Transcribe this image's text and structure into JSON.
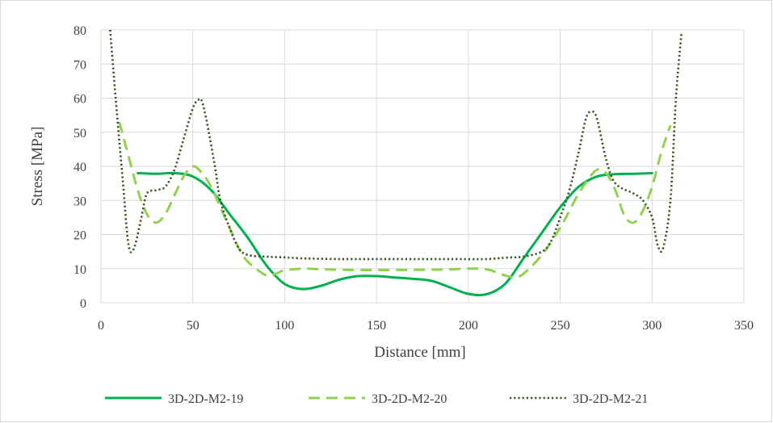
{
  "chart_data": {
    "type": "line",
    "title": "",
    "xlabel": "Distance [mm]",
    "ylabel": "Stress [MPa]",
    "xlim": [
      0,
      350
    ],
    "ylim": [
      0,
      80
    ],
    "x_ticks": [
      0,
      50,
      100,
      150,
      200,
      250,
      300,
      350
    ],
    "y_ticks": [
      0,
      10,
      20,
      30,
      40,
      50,
      60,
      70,
      80
    ],
    "grid": true,
    "legend_position": "bottom",
    "series": [
      {
        "name": "3D-2D-M2-19",
        "color": "#00B050",
        "style": "solid",
        "x": [
          20,
          30,
          40,
          50,
          60,
          70,
          80,
          90,
          100,
          110,
          120,
          130,
          140,
          150,
          160,
          170,
          180,
          190,
          200,
          210,
          220,
          230,
          240,
          250,
          260,
          270,
          280,
          290,
          300
        ],
        "y": [
          38,
          37.8,
          38,
          37,
          33,
          26,
          19,
          11,
          5.5,
          4,
          5,
          6.8,
          7.8,
          7.8,
          7.4,
          7,
          6.4,
          4.5,
          2.6,
          2.5,
          5.5,
          13,
          20.5,
          28,
          34,
          37,
          37.7,
          37.8,
          38
        ]
      },
      {
        "name": "3D-2D-M2-20",
        "color": "#92D050",
        "style": "dashed",
        "x": [
          10,
          15,
          20,
          25,
          30,
          35,
          40,
          45,
          50,
          55,
          60,
          65,
          70,
          75,
          80,
          90,
          95,
          100,
          110,
          120,
          140,
          160,
          180,
          190,
          200,
          210,
          220,
          225,
          230,
          240,
          250,
          255,
          260,
          265,
          270,
          275,
          280,
          285,
          290,
          295,
          300,
          305,
          310
        ],
        "y": [
          53,
          43,
          33,
          26,
          23.5,
          26,
          31.5,
          37,
          40,
          38,
          34,
          28,
          22,
          16,
          12,
          8,
          8.5,
          9.5,
          10,
          9.8,
          9.6,
          9.6,
          9.7,
          9.8,
          10,
          9.8,
          8,
          7.5,
          8.5,
          14,
          22,
          27,
          32,
          36,
          39,
          38,
          33,
          25.5,
          23.5,
          27,
          34,
          44,
          52
        ]
      },
      {
        "name": "3D-2D-M2-21",
        "color": "#375623",
        "style": "dotted",
        "x": [
          5,
          8,
          12,
          15,
          18,
          22,
          25,
          30,
          35,
          40,
          45,
          50,
          53,
          55,
          58,
          62,
          65,
          70,
          75,
          80,
          90,
          100,
          110,
          130,
          150,
          170,
          190,
          210,
          220,
          230,
          240,
          245,
          250,
          255,
          260,
          264,
          267,
          270,
          275,
          280,
          290,
          295,
          300,
          303,
          306,
          310,
          313,
          316
        ],
        "y": [
          80,
          60,
          35,
          17,
          16,
          25,
          32,
          33,
          34,
          39,
          48,
          57,
          59.5,
          59,
          52,
          40,
          30,
          22,
          16,
          14,
          13.5,
          13.3,
          13,
          12.8,
          12.8,
          12.8,
          12.8,
          12.8,
          13.2,
          13.5,
          15,
          18,
          25,
          33,
          44,
          54,
          56,
          54,
          42,
          35,
          32,
          30,
          25,
          17,
          16,
          30,
          60,
          79
        ]
      }
    ]
  }
}
